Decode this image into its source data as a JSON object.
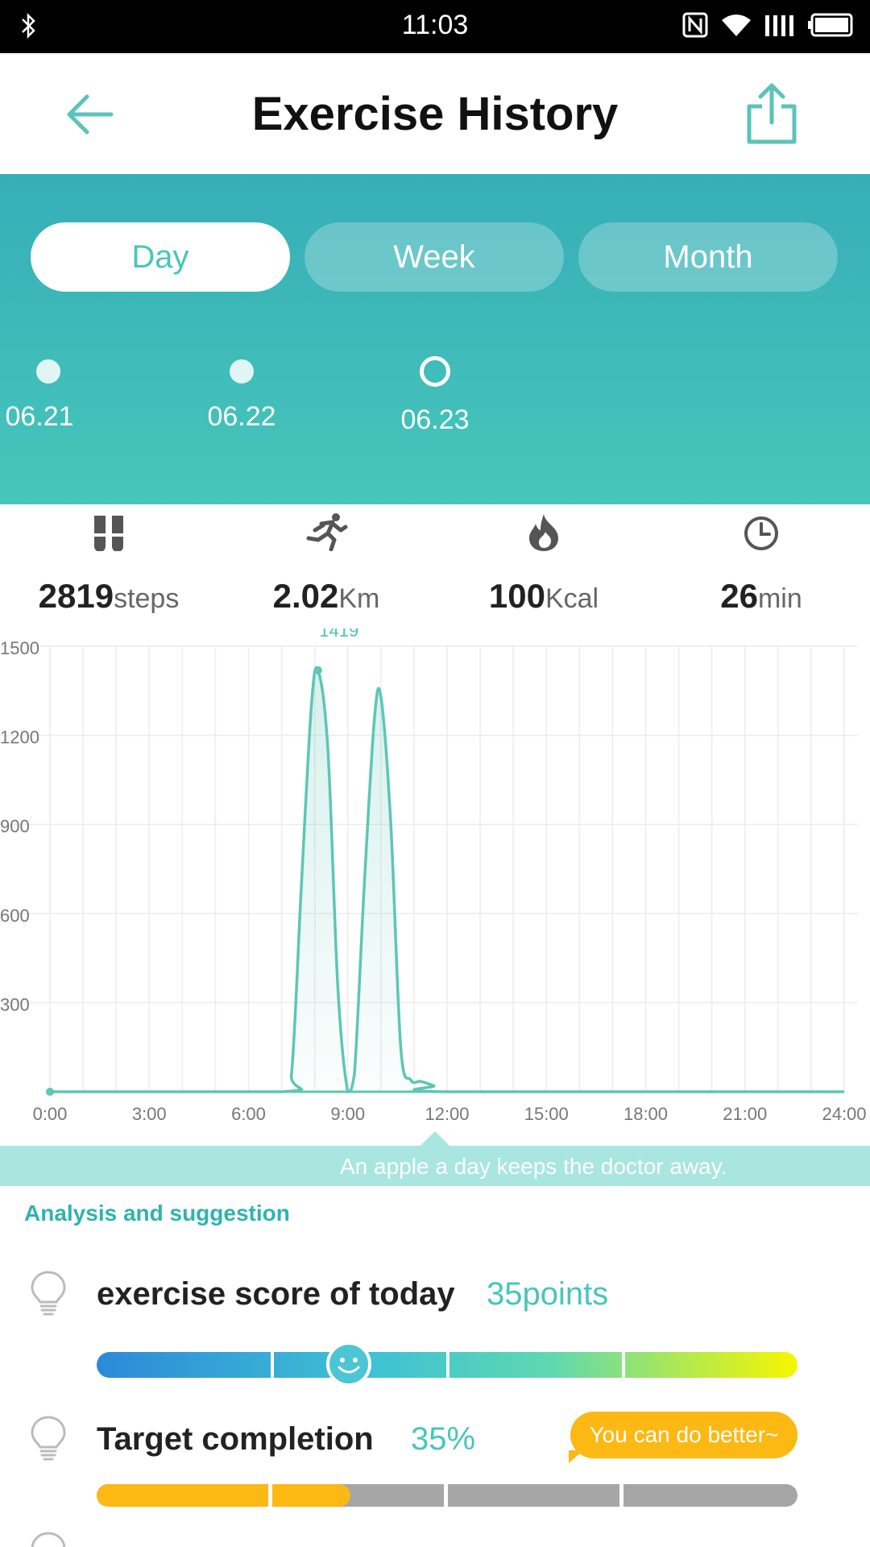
{
  "status_bar": {
    "time": "11:03"
  },
  "header": {
    "title": "Exercise History"
  },
  "tabs": [
    {
      "label": "Day",
      "active": true
    },
    {
      "label": "Week",
      "active": false
    },
    {
      "label": "Month",
      "active": false
    }
  ],
  "dates": [
    "06.21",
    "06.22",
    "06.23"
  ],
  "stats": [
    {
      "icon": "footprints-icon",
      "value": "2819",
      "unit": "steps"
    },
    {
      "icon": "running-icon",
      "value": "2.02",
      "unit": "Km"
    },
    {
      "icon": "flame-icon",
      "value": "100",
      "unit": "Kcal"
    },
    {
      "icon": "clock-icon",
      "value": "26",
      "unit": "min"
    }
  ],
  "chart_data": {
    "type": "area",
    "title": "",
    "xlabel": "",
    "ylabel": "",
    "x_ticks": [
      "0:00",
      "3:00",
      "6:00",
      "9:00",
      "12:00",
      "15:00",
      "18:00",
      "21:00",
      "24:00"
    ],
    "y_ticks": [
      300,
      600,
      900,
      1200,
      1500
    ],
    "xlim": [
      0,
      24
    ],
    "ylim": [
      0,
      1500
    ],
    "grid": true,
    "peak_label": "1419",
    "series": [
      {
        "x": [
          0,
          7.0,
          7.3,
          7.6,
          7.9,
          8.1,
          8.4,
          8.7,
          9.0,
          9.2,
          9.5,
          9.8,
          10.0,
          10.3,
          10.6,
          10.9,
          11.2,
          11.6,
          12.0,
          24
        ],
        "values": [
          0,
          0,
          60,
          700,
          1300,
          1419,
          1150,
          350,
          0,
          60,
          700,
          1250,
          1330,
          900,
          150,
          40,
          35,
          20,
          0,
          0
        ]
      }
    ],
    "color": "#5ec6b4"
  },
  "quote": "An apple a day keeps the doctor away.",
  "analysis": {
    "title": "Analysis and suggestion",
    "score_label": "exercise score of today",
    "score_value": "35points",
    "score_level": 0.36,
    "target_label": "Target completion",
    "target_value": "35%",
    "target_level": 0.35,
    "target_message": "You can do better~"
  },
  "colors": {
    "accent": "#47c6bb",
    "header_teal": "#36aeb7",
    "orange": "#fcb813"
  }
}
